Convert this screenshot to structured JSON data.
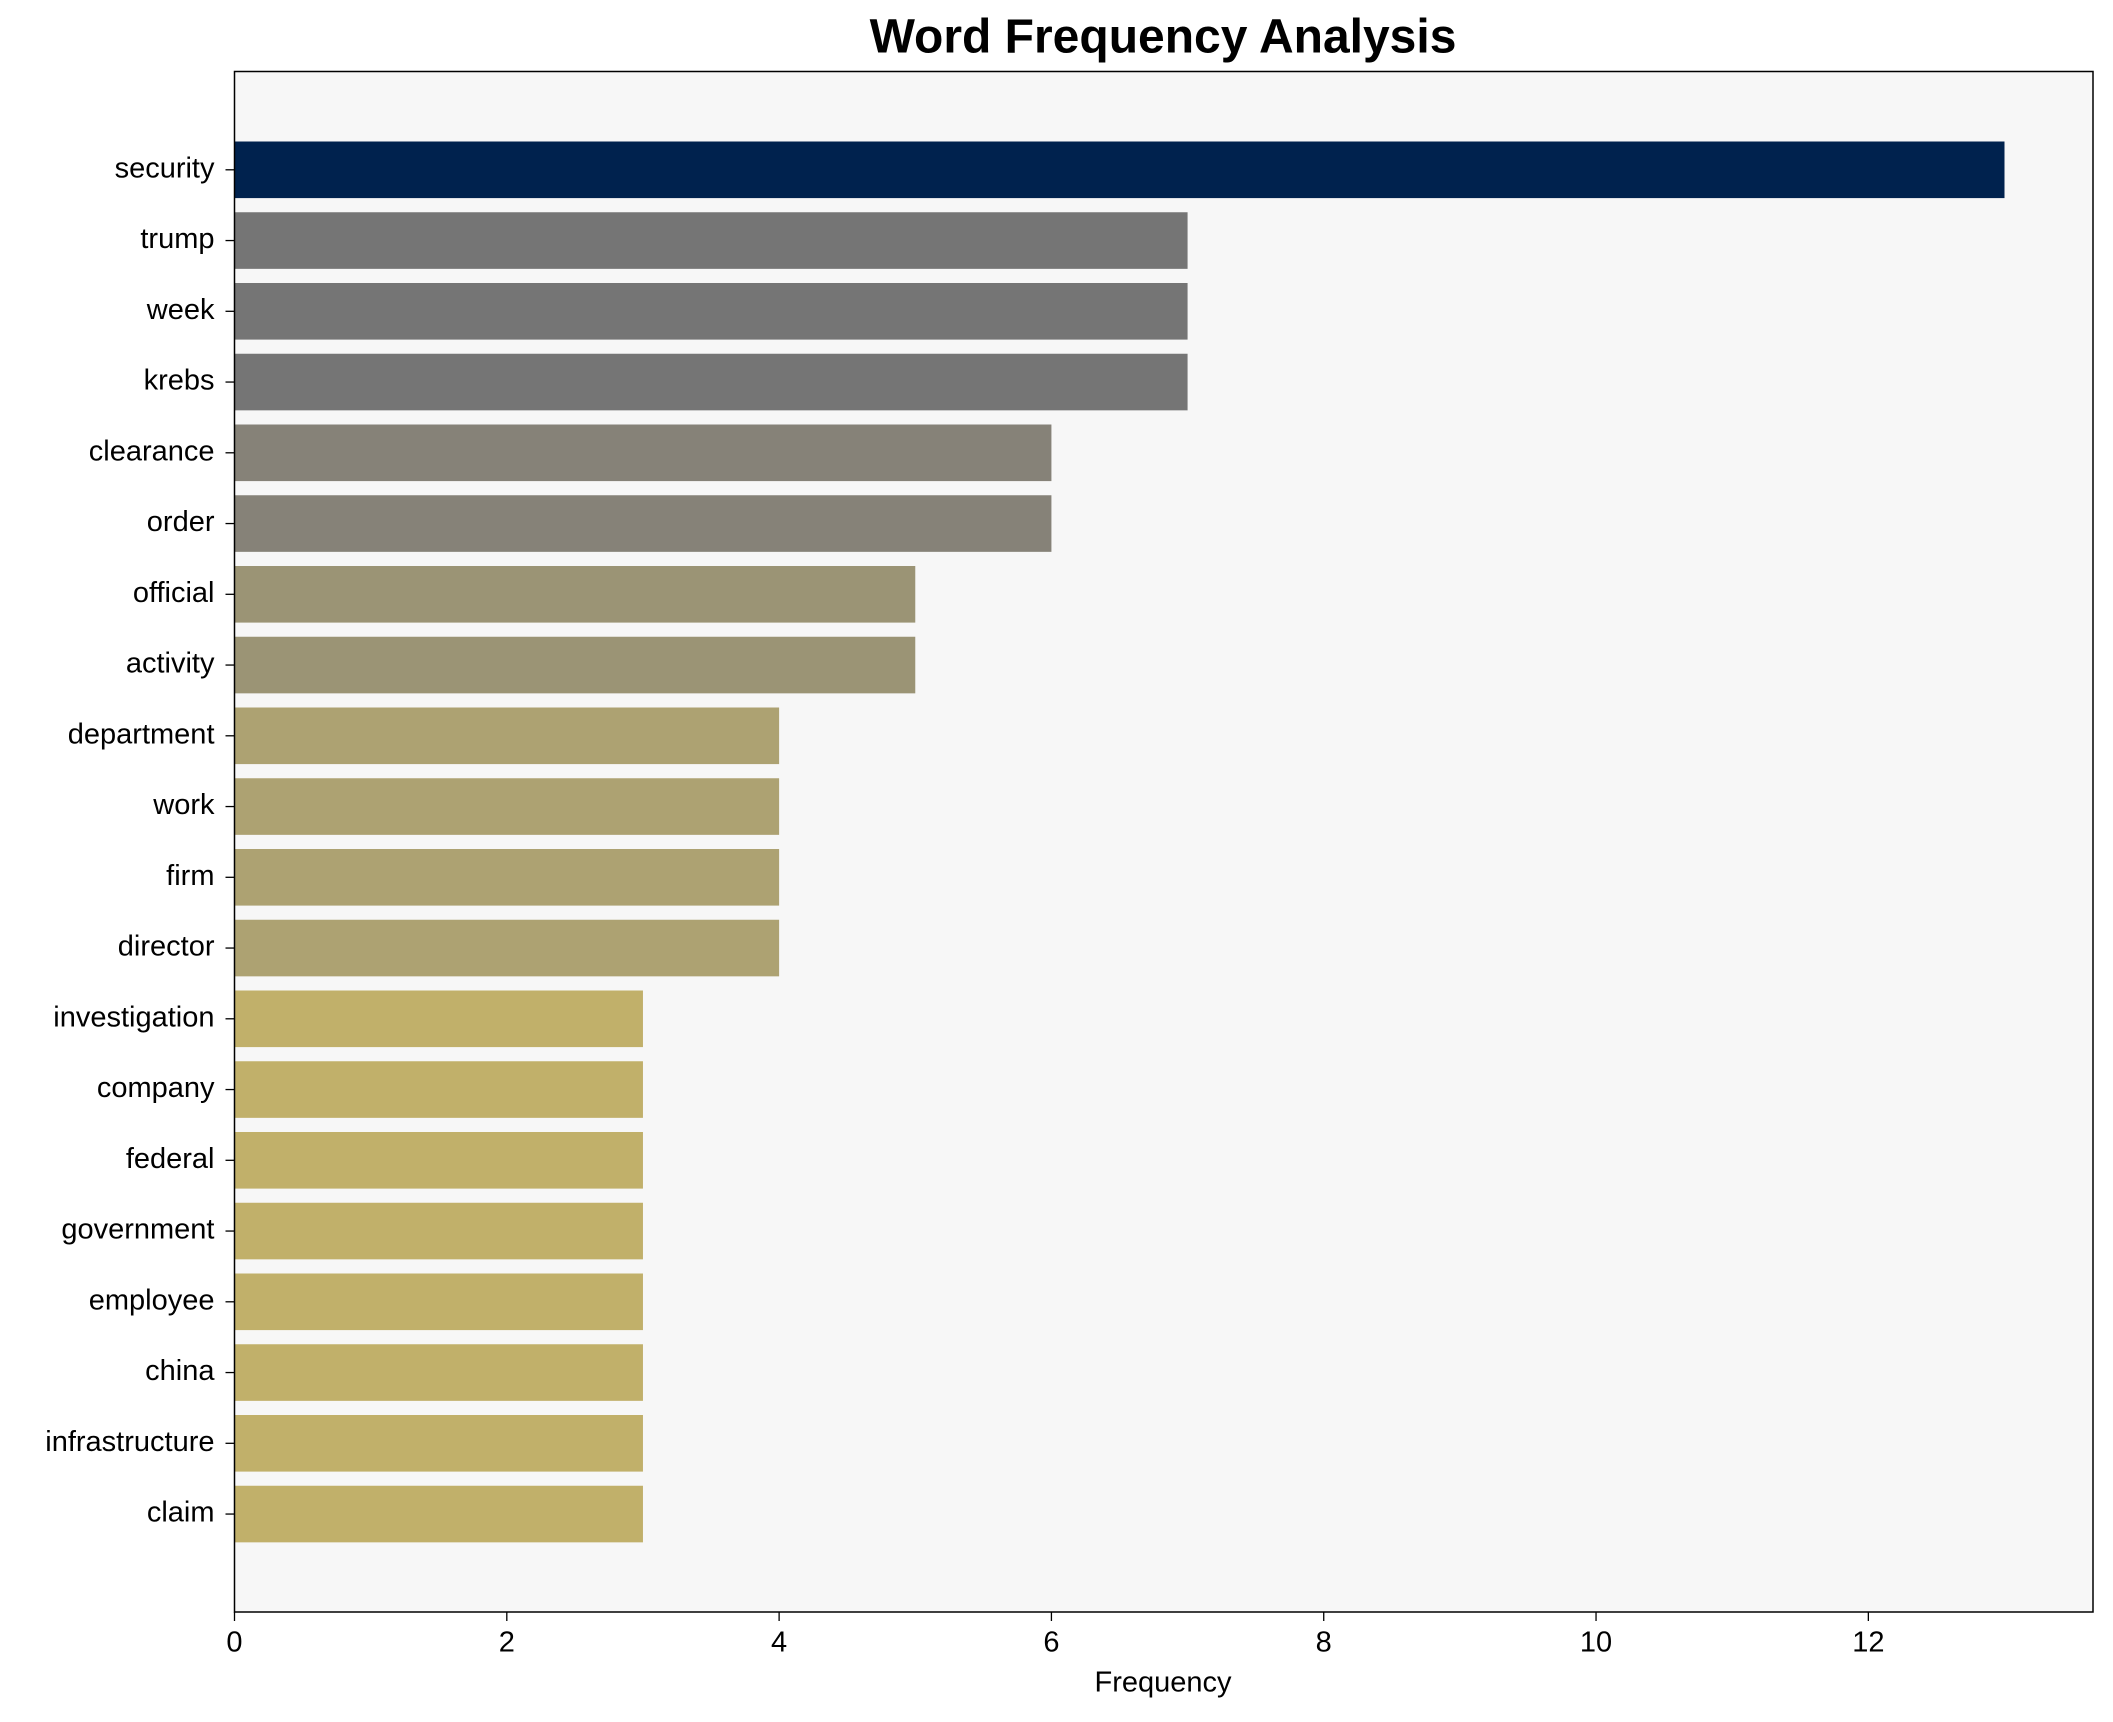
{
  "chart_data": {
    "type": "barh",
    "title": "Word Frequency Analysis",
    "x_label": "Frequency",
    "categories": [
      "security",
      "trump",
      "week",
      "krebs",
      "clearance",
      "order",
      "official",
      "activity",
      "department",
      "work",
      "firm",
      "director",
      "investigation",
      "company",
      "federal",
      "government",
      "employee",
      "china",
      "infrastructure",
      "claim"
    ],
    "values": [
      13,
      7,
      7,
      7,
      6,
      6,
      5,
      5,
      4,
      4,
      4,
      4,
      3,
      3,
      3,
      3,
      3,
      3,
      3,
      3
    ],
    "colors": [
      "#00224e",
      "#757575",
      "#757575",
      "#757575",
      "#868278",
      "#868278",
      "#9b9475",
      "#9b9475",
      "#ada272",
      "#ada272",
      "#ada272",
      "#ada272",
      "#c1b06a",
      "#c1b06a",
      "#c1b06a",
      "#c1b06a",
      "#c1b06a",
      "#c1b06a",
      "#c1b06a",
      "#c1b06a"
    ],
    "xlim": [
      0,
      13.65
    ],
    "xticks": [
      0,
      2,
      4,
      6,
      8,
      10,
      12
    ],
    "grid": false
  }
}
